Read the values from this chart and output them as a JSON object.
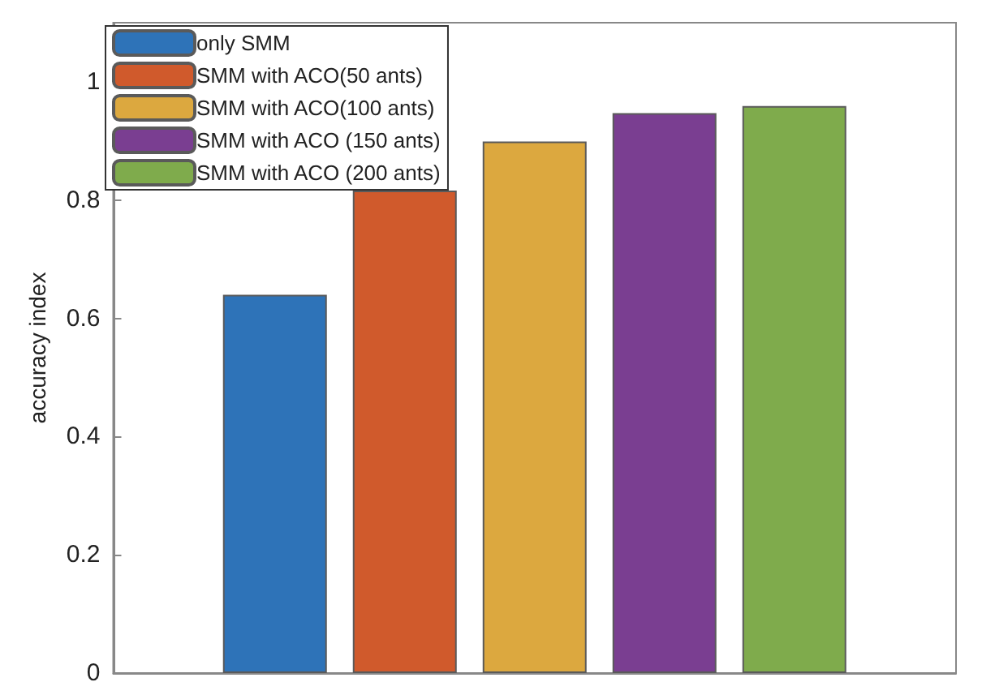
{
  "chart_data": {
    "type": "bar",
    "ylabel": "accuracy index",
    "categories": [
      null
    ],
    "series": [
      {
        "name": "only SMM",
        "color": "#2e73b8",
        "values": [
          0.64
        ]
      },
      {
        "name": "SMM with ACO(50 ants)",
        "color": "#d05a2c",
        "values": [
          0.816
        ]
      },
      {
        "name": "SMM with ACO(100 ants)",
        "color": "#dca83f",
        "values": [
          0.899
        ]
      },
      {
        "name": "SMM with ACO (150 ants)",
        "color": "#7a3e91",
        "values": [
          0.947
        ]
      },
      {
        "name": "SMM with ACO (200 ants)",
        "color": "#7fab4c",
        "values": [
          0.959
        ]
      }
    ],
    "ylim": [
      0,
      1.1
    ],
    "yticks": [
      0,
      0.2,
      0.4,
      0.6,
      0.8,
      1
    ],
    "grid": false,
    "legend": "top left"
  }
}
